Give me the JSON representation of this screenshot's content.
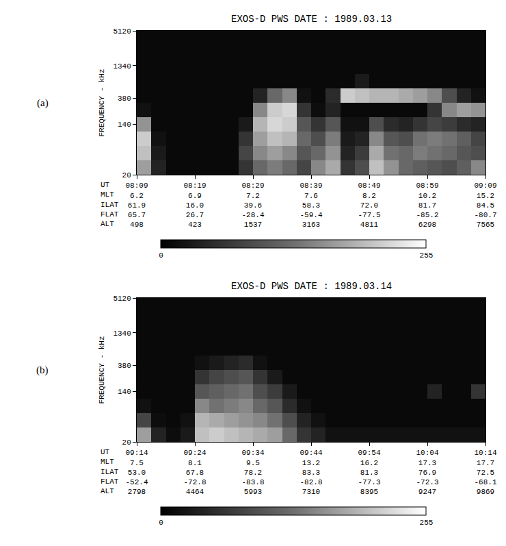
{
  "chart_data": [
    {
      "type": "heatmap",
      "label": "(a)",
      "title": "EXOS-D PWS DATE : 1989.03.13",
      "y_label": "FREQUENCY - kHz",
      "x_label": "UT",
      "log": "y",
      "xlim": [
        489,
        549
      ],
      "xticks": [
        {
          "value": 489,
          "label": "08:09"
        },
        {
          "value": 499,
          "label": "08:19"
        },
        {
          "value": 509,
          "label": "08:29"
        },
        {
          "value": 519,
          "label": "08:39"
        },
        {
          "value": 529,
          "label": "08:49"
        },
        {
          "value": 539,
          "label": "08:59"
        },
        {
          "value": 549,
          "label": "09:09"
        }
      ],
      "ylim": [
        20,
        5120
      ],
      "yticks": [
        20,
        140,
        380,
        1340,
        5120
      ],
      "rows": [
        {
          "name": "MLT",
          "values": [
            "6.2",
            "6.9",
            "7.2",
            "7.6",
            "8.2",
            "10.2",
            "15.2"
          ]
        },
        {
          "name": "ILAT",
          "values": [
            "61.9",
            "16.0",
            "39.6",
            "58.3",
            "72.0",
            "81.7",
            "84.5"
          ]
        },
        {
          "name": "FLAT",
          "values": [
            "65.7",
            "26.7",
            "-28.4",
            "-59.4",
            "-77.5",
            "-85.2",
            "-80.7"
          ]
        },
        {
          "name": "ALT",
          "values": [
            "498",
            "423",
            "1537",
            "3163",
            "4811",
            "6298",
            "7565"
          ]
        }
      ],
      "x_edges": [
        489,
        491.5,
        494,
        496.5,
        499,
        501.5,
        504,
        506.5,
        509,
        511.5,
        514,
        516.5,
        519,
        521.5,
        524,
        526.5,
        529,
        531.5,
        534,
        536.5,
        539,
        541.5,
        544,
        546.5,
        549
      ],
      "y_edges": [
        20,
        35,
        61,
        106,
        184,
        320,
        557,
        970,
        1689,
        2940,
        5120
      ],
      "cells": [
        [
          170,
          40,
          10,
          10,
          10,
          10,
          10,
          60,
          120,
          140,
          120,
          80,
          150,
          180,
          60,
          90,
          200,
          160,
          120,
          110,
          100,
          90,
          110,
          150
        ],
        [
          200,
          30,
          10,
          10,
          10,
          10,
          10,
          80,
          150,
          170,
          150,
          100,
          120,
          160,
          40,
          70,
          180,
          130,
          120,
          140,
          130,
          120,
          100,
          90
        ],
        [
          210,
          20,
          10,
          10,
          10,
          10,
          10,
          60,
          170,
          200,
          190,
          120,
          90,
          140,
          30,
          40,
          150,
          100,
          90,
          130,
          140,
          130,
          110,
          80
        ],
        [
          160,
          10,
          10,
          10,
          10,
          10,
          10,
          30,
          190,
          220,
          210,
          100,
          60,
          100,
          20,
          20,
          90,
          50,
          40,
          60,
          80,
          70,
          50,
          40
        ],
        [
          20,
          10,
          10,
          10,
          10,
          10,
          10,
          10,
          150,
          210,
          220,
          60,
          15,
          40,
          10,
          10,
          10,
          10,
          10,
          10,
          60,
          150,
          170,
          160
        ],
        [
          10,
          10,
          10,
          10,
          10,
          10,
          10,
          10,
          40,
          120,
          150,
          20,
          10,
          50,
          210,
          200,
          190,
          190,
          180,
          170,
          150,
          90,
          40,
          20
        ],
        [
          10,
          10,
          10,
          10,
          10,
          10,
          10,
          10,
          10,
          10,
          10,
          10,
          10,
          10,
          10,
          30,
          10,
          10,
          10,
          10,
          10,
          10,
          10,
          10
        ],
        [
          10,
          10,
          10,
          10,
          10,
          10,
          10,
          10,
          10,
          10,
          10,
          10,
          10,
          10,
          10,
          10,
          10,
          10,
          10,
          10,
          10,
          10,
          10,
          10
        ],
        [
          10,
          10,
          10,
          10,
          10,
          10,
          10,
          10,
          10,
          10,
          10,
          10,
          10,
          10,
          10,
          10,
          10,
          10,
          10,
          10,
          10,
          10,
          10,
          10
        ],
        [
          10,
          10,
          10,
          10,
          10,
          10,
          10,
          10,
          10,
          10,
          10,
          10,
          10,
          10,
          10,
          10,
          10,
          10,
          10,
          10,
          10,
          10,
          10,
          10
        ]
      ],
      "colorbar": {
        "range": [
          0,
          255
        ],
        "ticks": [
          0,
          255
        ]
      }
    },
    {
      "type": "heatmap",
      "label": "(b)",
      "title": "EXOS-D PWS DATE : 1989.03.14",
      "y_label": "FREQUENCY - kHz",
      "x_label": "UT",
      "log": "y",
      "xlim": [
        554,
        614
      ],
      "xticks": [
        {
          "value": 554,
          "label": "09:14"
        },
        {
          "value": 564,
          "label": "09:24"
        },
        {
          "value": 574,
          "label": "09:34"
        },
        {
          "value": 584,
          "label": "09:44"
        },
        {
          "value": 594,
          "label": "09:54"
        },
        {
          "value": 604,
          "label": "10:04"
        },
        {
          "value": 614,
          "label": "10:14"
        }
      ],
      "ylim": [
        20,
        5120
      ],
      "yticks": [
        20,
        140,
        380,
        1340,
        5120
      ],
      "rows": [
        {
          "name": "MLT",
          "values": [
            "7.5",
            "8.1",
            "9.5",
            "13.2",
            "16.2",
            "17.3",
            "17.7"
          ]
        },
        {
          "name": "ILAT",
          "values": [
            "53.0",
            "67.8",
            "78.2",
            "83.3",
            "81.3",
            "76.9",
            "72.5"
          ]
        },
        {
          "name": "FLAT",
          "values": [
            "-52.4",
            "-72.8",
            "-83.8",
            "-82.8",
            "-77.3",
            "-72.3",
            "-68.1"
          ]
        },
        {
          "name": "ALT",
          "values": [
            "2798",
            "4464",
            "5993",
            "7310",
            "8395",
            "9247",
            "9869"
          ]
        }
      ],
      "x_edges": [
        554,
        556.5,
        559,
        561.5,
        564,
        566.5,
        569,
        571.5,
        574,
        576.5,
        579,
        581.5,
        584,
        586.5,
        589,
        591.5,
        594,
        596.5,
        599,
        601.5,
        604,
        606.5,
        609,
        611.5,
        614
      ],
      "y_edges": [
        20,
        35,
        61,
        106,
        184,
        320,
        557,
        970,
        1689,
        2940,
        5120
      ],
      "cells": [
        [
          170,
          40,
          15,
          30,
          200,
          210,
          200,
          190,
          180,
          170,
          120,
          60,
          40,
          20,
          20,
          20,
          20,
          20,
          20,
          20,
          20,
          20,
          20,
          20
        ],
        [
          80,
          15,
          10,
          20,
          190,
          180,
          170,
          160,
          150,
          130,
          90,
          40,
          20,
          10,
          10,
          10,
          10,
          10,
          10,
          10,
          10,
          10,
          10,
          10
        ],
        [
          20,
          10,
          10,
          10,
          150,
          130,
          140,
          150,
          120,
          100,
          50,
          20,
          10,
          10,
          10,
          10,
          10,
          10,
          10,
          10,
          10,
          10,
          10,
          10
        ],
        [
          10,
          10,
          10,
          10,
          100,
          110,
          120,
          130,
          90,
          70,
          30,
          10,
          10,
          10,
          10,
          10,
          10,
          10,
          10,
          10,
          40,
          10,
          10,
          60
        ],
        [
          10,
          10,
          10,
          10,
          60,
          80,
          90,
          100,
          60,
          30,
          10,
          10,
          10,
          10,
          10,
          10,
          10,
          10,
          10,
          10,
          10,
          10,
          10,
          10
        ],
        [
          10,
          10,
          10,
          10,
          20,
          30,
          40,
          50,
          20,
          10,
          10,
          10,
          10,
          10,
          10,
          10,
          10,
          10,
          10,
          10,
          10,
          10,
          10,
          10
        ],
        [
          10,
          10,
          10,
          10,
          10,
          10,
          10,
          10,
          10,
          10,
          10,
          10,
          10,
          10,
          10,
          10,
          10,
          10,
          10,
          10,
          10,
          10,
          10,
          10
        ],
        [
          10,
          10,
          10,
          10,
          10,
          10,
          10,
          10,
          10,
          10,
          10,
          10,
          10,
          10,
          10,
          10,
          10,
          10,
          10,
          10,
          10,
          10,
          10,
          10
        ],
        [
          10,
          10,
          10,
          10,
          10,
          10,
          10,
          10,
          10,
          10,
          10,
          10,
          10,
          10,
          10,
          10,
          10,
          10,
          10,
          10,
          10,
          10,
          10,
          10
        ],
        [
          10,
          10,
          10,
          10,
          10,
          10,
          10,
          10,
          10,
          10,
          10,
          10,
          10,
          10,
          10,
          10,
          10,
          10,
          10,
          10,
          10,
          10,
          10,
          10
        ]
      ],
      "colorbar": {
        "range": [
          0,
          255
        ],
        "ticks": [
          0,
          255
        ]
      }
    }
  ]
}
